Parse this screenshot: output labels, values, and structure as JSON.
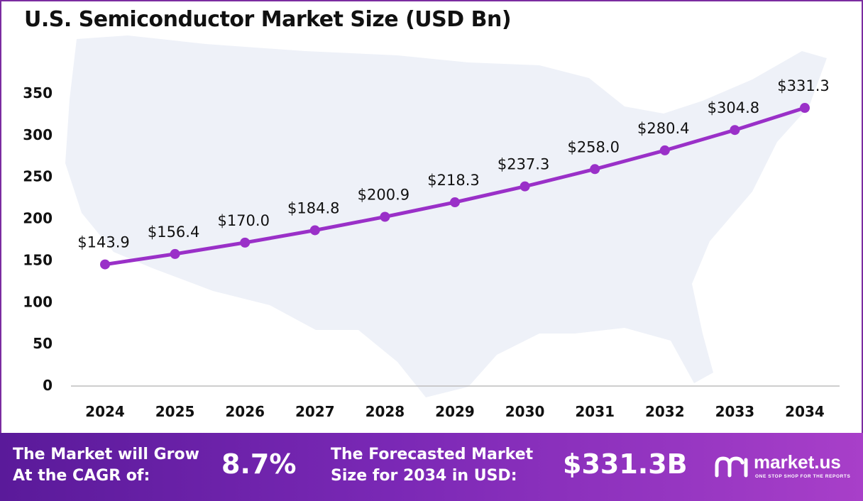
{
  "chart_data": {
    "type": "line",
    "title": "U.S. Semiconductor Market Size (USD Bn)",
    "xlabel": "",
    "ylabel": "",
    "categories": [
      "2024",
      "2025",
      "2026",
      "2027",
      "2028",
      "2029",
      "2030",
      "2031",
      "2032",
      "2033",
      "2034"
    ],
    "values": [
      143.9,
      156.4,
      170.0,
      184.8,
      200.9,
      218.3,
      237.3,
      258.0,
      280.4,
      304.8,
      331.3
    ],
    "data_labels": [
      "$143.9",
      "$156.4",
      "$170.0",
      "$184.8",
      "$200.9",
      "$218.3",
      "$237.3",
      "$258.0",
      "$280.4",
      "$304.8",
      "$331.3"
    ],
    "y_ticks": [
      "0",
      "50",
      "100",
      "150",
      "200",
      "250",
      "300",
      "350"
    ],
    "ylim": [
      0,
      350
    ],
    "grid": false,
    "legend": "none",
    "line_color": "#9a30c8",
    "background_map_color": "#eef1f8"
  },
  "footer": {
    "cagr_label": "The Market will Grow\nAt the CAGR of:",
    "cagr_value": "8.7%",
    "forecast_label": "The Forecasted Market\nSize for 2034 in USD:",
    "forecast_value": "$331.3B",
    "brand_name": "market.us",
    "brand_tagline": "ONE STOP SHOP FOR THE REPORTS",
    "brand_icon": "market-us-logo-icon"
  }
}
